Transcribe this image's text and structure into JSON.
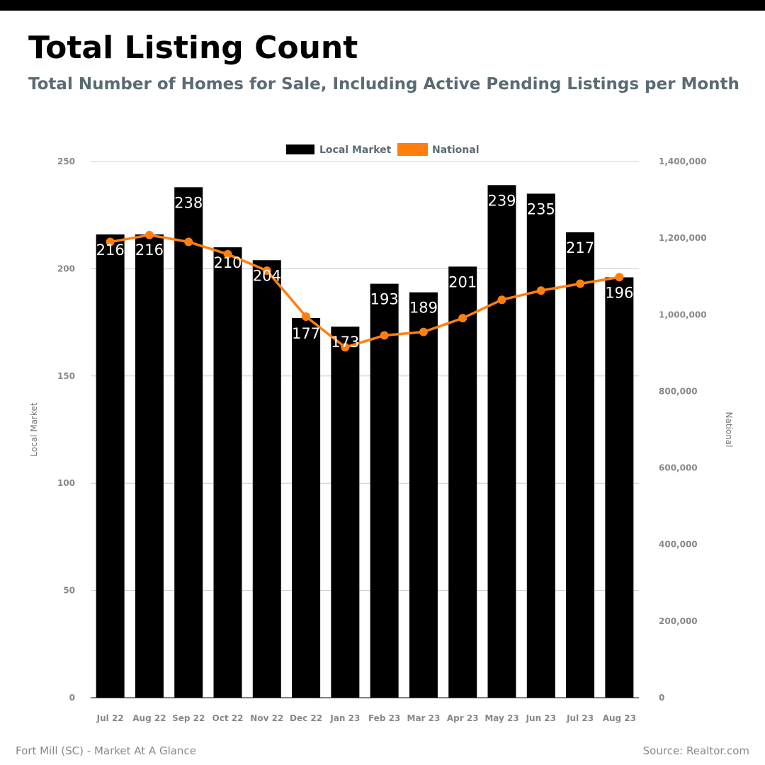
{
  "header": {
    "title": "Total Listing Count",
    "subtitle": "Total Number of Homes for Sale, Including Active Pending Listings per Month"
  },
  "footer": {
    "left": "Fort Mill (SC) - Market At A Glance",
    "right": "Source: Realtor.com"
  },
  "colors": {
    "local": "#000000",
    "national": "#ff7f0e",
    "grid": "#cccccc",
    "tick": "#888888"
  },
  "chart_data": {
    "type": "bar",
    "title": "Total Listing Count",
    "subtitle": "Total Number of Homes for Sale, Including Active Pending Listings per Month",
    "categories": [
      "Jul 22",
      "Aug 22",
      "Sep 22",
      "Oct 22",
      "Nov 22",
      "Dec 22",
      "Jan 23",
      "Feb 23",
      "Mar 23",
      "Apr 23",
      "May 23",
      "Jun 23",
      "Jul 23",
      "Aug 23"
    ],
    "series": [
      {
        "name": "Local Market",
        "type": "bar",
        "axis": "left",
        "values": [
          216,
          216,
          238,
          210,
          204,
          177,
          173,
          193,
          189,
          201,
          239,
          235,
          217,
          196
        ]
      },
      {
        "name": "National",
        "type": "line",
        "axis": "right",
        "values": [
          1190000,
          1208000,
          1190000,
          1158000,
          1115000,
          995000,
          915000,
          946000,
          955000,
          991000,
          1039000,
          1063000,
          1081000,
          1098000
        ]
      }
    ],
    "ylabel_left": "Local Market",
    "ylabel_right": "National",
    "ylim_left": [
      0,
      250
    ],
    "ylim_right": [
      0,
      1400000
    ],
    "yticks_left": [
      0,
      50,
      100,
      150,
      200,
      250
    ],
    "yticks_right": [
      0,
      200000,
      400000,
      600000,
      800000,
      1000000,
      1200000,
      1400000
    ],
    "yticks_left_labels": [
      "0",
      "50",
      "100",
      "150",
      "200",
      "250"
    ],
    "yticks_right_labels": [
      "0",
      "200,000",
      "400,000",
      "600,000",
      "800,000",
      "1,000,000",
      "1,200,000",
      "1,400,000"
    ],
    "grid": true,
    "legend": "top-center"
  }
}
